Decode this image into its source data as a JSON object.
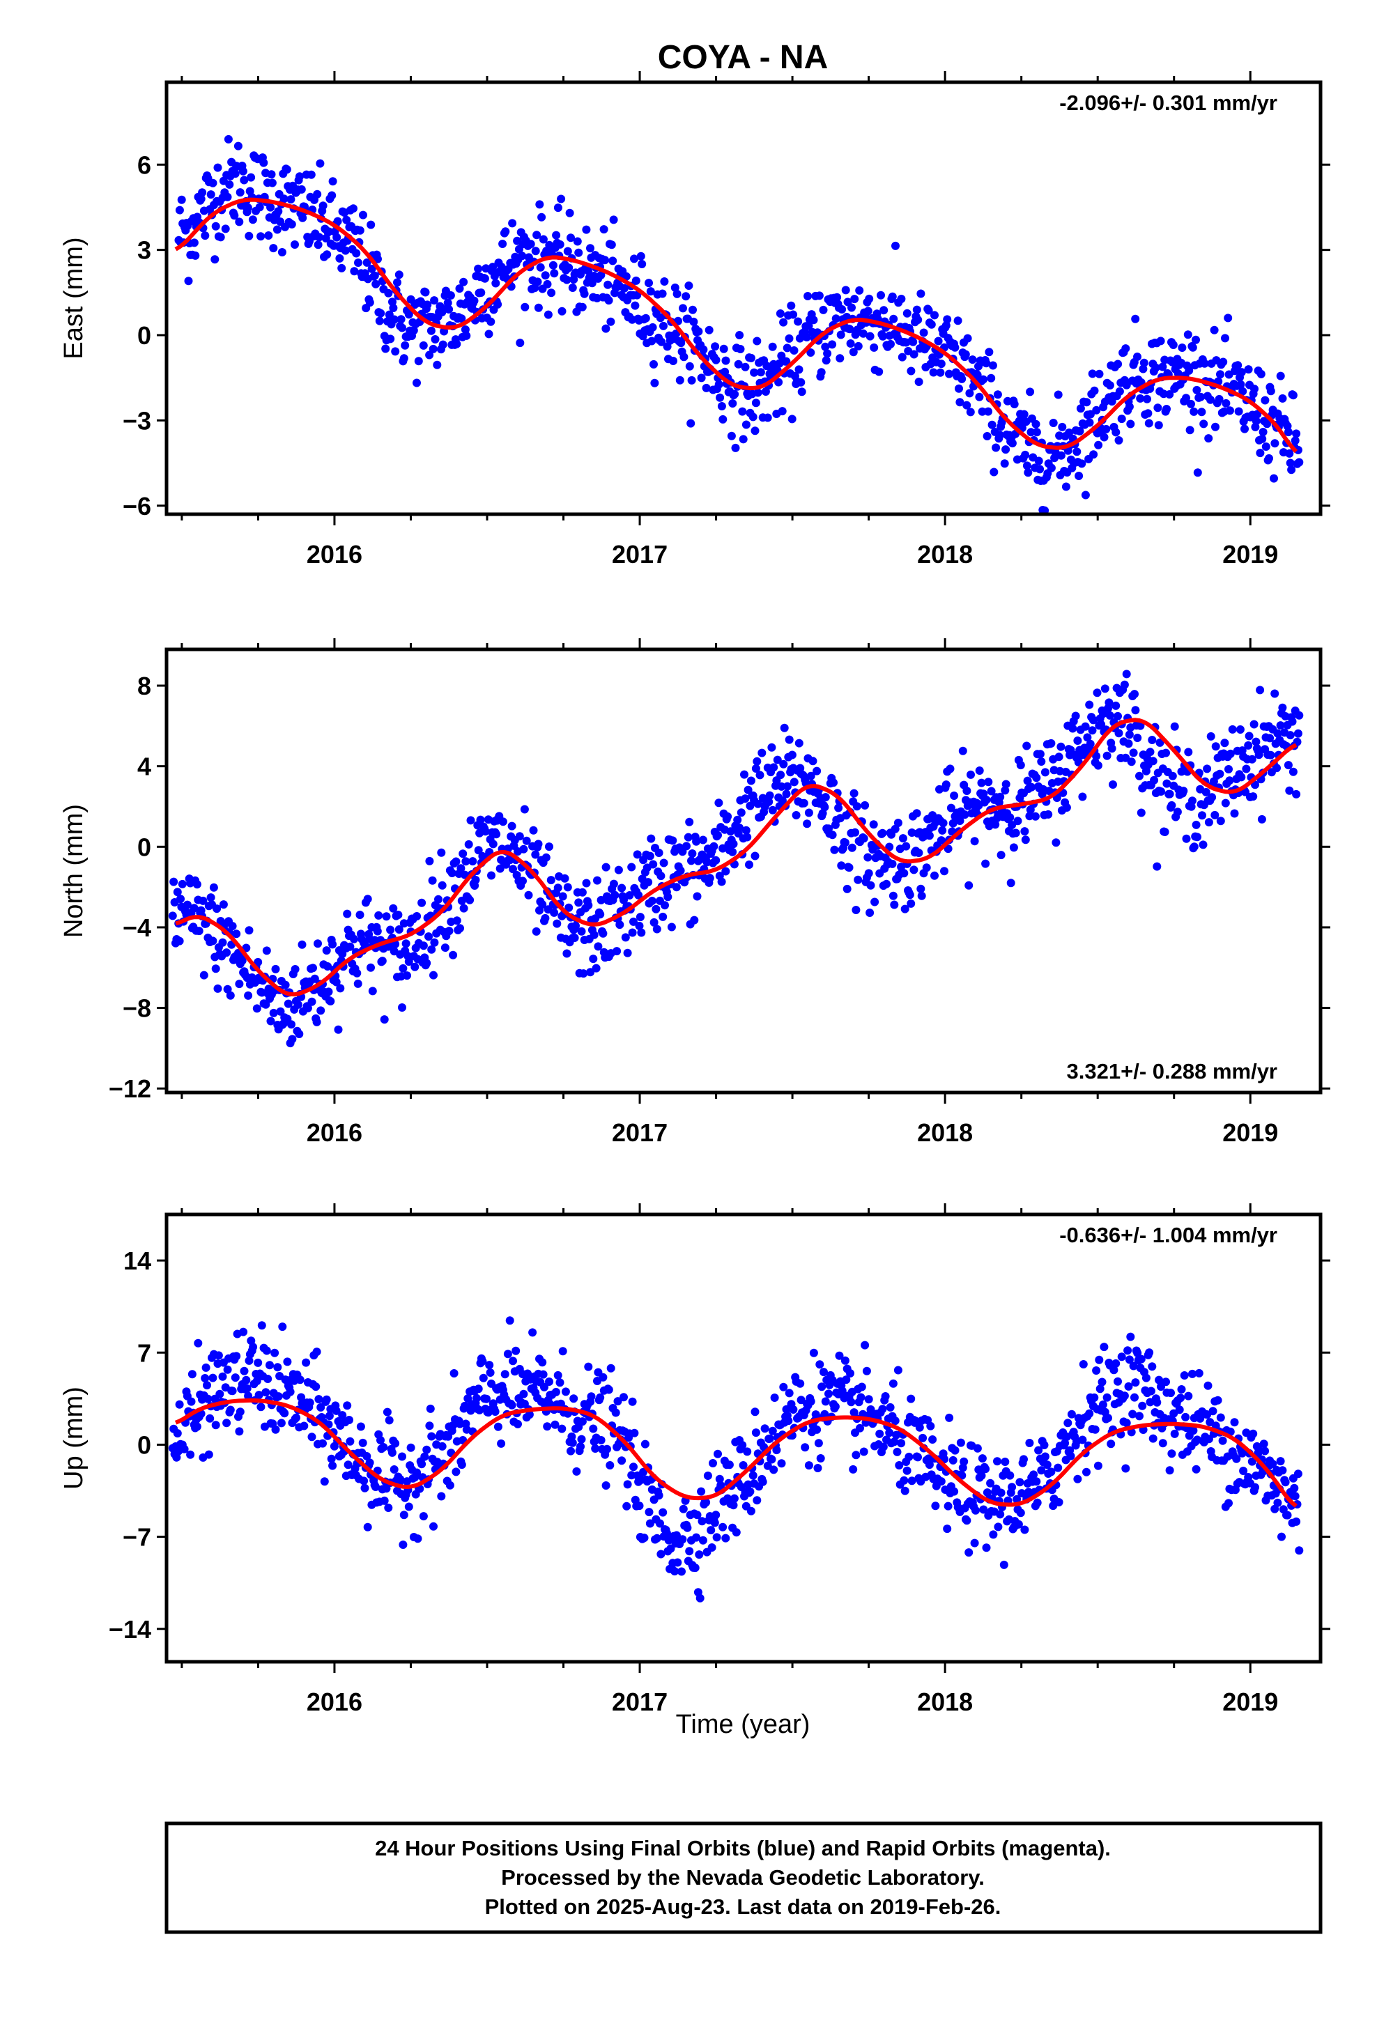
{
  "title": "COYA - NA",
  "xlabel": "Time (year)",
  "colors": {
    "points": "#0000ff",
    "fit": "#ff0000",
    "axes": "#000000"
  },
  "chart_data": [
    {
      "type": "scatter",
      "panel": "east",
      "ylabel": "East (mm)",
      "rate_label": "-2.096+/- 0.301 mm/yr",
      "rate_position": "top-right",
      "xlim": [
        2015.45,
        2019.23
      ],
      "ylim": [
        -6.3,
        8.9
      ],
      "yticks": [
        -6,
        -3,
        0,
        3,
        6
      ],
      "ytick_labels": [
        "−6",
        "−3",
        "0",
        "3",
        "6"
      ],
      "xticks": [
        2016,
        2017,
        2018,
        2019
      ],
      "xtick_labels": [
        "2016",
        "2017",
        "2018",
        "2019"
      ],
      "series": [
        {
          "name": "",
          "kind": "points",
          "x": [
            2015.52,
            2015.6,
            2015.68,
            2015.76,
            2015.84,
            2015.92,
            2016.0,
            2016.08,
            2016.16,
            2016.24,
            2016.32,
            2016.4,
            2016.48,
            2016.56,
            2016.64,
            2016.72,
            2016.8,
            2016.88,
            2016.96,
            2017.04,
            2017.12,
            2017.2,
            2017.28,
            2017.36,
            2017.44,
            2017.52,
            2017.6,
            2017.68,
            2017.76,
            2017.84,
            2017.92,
            2018.0,
            2018.08,
            2018.16,
            2018.24,
            2018.32,
            2018.4,
            2018.48,
            2018.56,
            2018.64,
            2018.72,
            2018.8,
            2018.88,
            2018.96,
            2019.04,
            2019.12,
            2019.15
          ],
          "y": [
            3.6,
            4.8,
            5.4,
            4.9,
            4.6,
            4.2,
            3.6,
            2.9,
            1.2,
            0.2,
            0.3,
            0.6,
            1.6,
            2.4,
            2.8,
            2.6,
            2.3,
            2.0,
            1.4,
            0.8,
            0.2,
            -0.6,
            -1.6,
            -2.0,
            -1.4,
            -0.6,
            0.3,
            0.6,
            0.5,
            0.4,
            -0.3,
            -0.7,
            -1.4,
            -2.6,
            -3.8,
            -4.3,
            -4.0,
            -3.0,
            -1.9,
            -1.3,
            -1.5,
            -1.3,
            -1.8,
            -2.2,
            -2.8,
            -3.6,
            -3.9
          ]
        },
        {
          "name": "",
          "kind": "fit",
          "x": [
            2015.48,
            2015.6,
            2015.7,
            2015.8,
            2015.9,
            2016.0,
            2016.1,
            2016.2,
            2016.3,
            2016.4,
            2016.5,
            2016.6,
            2016.7,
            2016.8,
            2016.9,
            2017.0,
            2017.1,
            2017.2,
            2017.3,
            2017.4,
            2017.5,
            2017.6,
            2017.7,
            2017.8,
            2017.9,
            2018.0,
            2018.1,
            2018.2,
            2018.3,
            2018.4,
            2018.5,
            2018.6,
            2018.7,
            2018.8,
            2018.9,
            2019.0,
            2019.1,
            2019.15
          ],
          "y": [
            2.9,
            4.3,
            4.8,
            4.7,
            4.4,
            3.9,
            3.0,
            1.5,
            0.4,
            0.2,
            1.0,
            2.2,
            2.8,
            2.6,
            2.2,
            1.6,
            0.6,
            -0.8,
            -1.8,
            -1.9,
            -1.0,
            0.1,
            0.6,
            0.4,
            0.0,
            -0.6,
            -1.6,
            -3.0,
            -3.9,
            -4.0,
            -3.2,
            -2.1,
            -1.5,
            -1.5,
            -1.8,
            -2.3,
            -3.3,
            -4.3
          ]
        }
      ]
    },
    {
      "type": "scatter",
      "panel": "north",
      "ylabel": "North (mm)",
      "rate_label": "3.321+/- 0.288 mm/yr",
      "rate_position": "bottom-right",
      "xlim": [
        2015.45,
        2019.23
      ],
      "ylim": [
        -12.2,
        9.8
      ],
      "yticks": [
        -12,
        -8,
        -4,
        0,
        4,
        8
      ],
      "ytick_labels": [
        "−12",
        "−8",
        "−4",
        "0",
        "4",
        "8"
      ],
      "xticks": [
        2016,
        2017,
        2018,
        2019
      ],
      "xtick_labels": [
        "2016",
        "2017",
        "2018",
        "2019"
      ],
      "series": [
        {
          "name": "",
          "kind": "points",
          "x": [
            2015.5,
            2015.58,
            2015.66,
            2015.74,
            2015.82,
            2015.9,
            2015.98,
            2016.06,
            2016.14,
            2016.22,
            2016.3,
            2016.38,
            2016.46,
            2016.54,
            2016.62,
            2016.7,
            2016.78,
            2016.86,
            2016.94,
            2017.02,
            2017.1,
            2017.18,
            2017.26,
            2017.34,
            2017.42,
            2017.5,
            2017.58,
            2017.66,
            2017.74,
            2017.82,
            2017.9,
            2017.98,
            2018.06,
            2018.14,
            2018.22,
            2018.3,
            2018.38,
            2018.46,
            2018.54,
            2018.62,
            2018.7,
            2018.78,
            2018.86,
            2018.94,
            2019.02,
            2019.1,
            2019.15
          ],
          "y": [
            -3.4,
            -3.9,
            -5.2,
            -6.6,
            -7.9,
            -7.4,
            -6.2,
            -4.8,
            -4.9,
            -5.4,
            -3.8,
            -2.4,
            -0.6,
            0.2,
            -0.9,
            -2.8,
            -4.1,
            -4.0,
            -3.2,
            -2.1,
            -1.3,
            -1.2,
            -0.4,
            1.6,
            2.6,
            3.4,
            2.9,
            1.0,
            -0.6,
            -0.6,
            -0.5,
            0.9,
            1.6,
            2.1,
            2.0,
            2.5,
            3.6,
            5.4,
            6.6,
            5.8,
            3.4,
            2.5,
            2.7,
            3.5,
            4.8,
            5.3,
            5.5
          ]
        },
        {
          "name": "",
          "kind": "fit",
          "x": [
            2015.48,
            2015.55,
            2015.65,
            2015.75,
            2015.85,
            2015.95,
            2016.05,
            2016.15,
            2016.25,
            2016.35,
            2016.45,
            2016.55,
            2016.65,
            2016.75,
            2016.85,
            2016.95,
            2017.05,
            2017.15,
            2017.25,
            2017.35,
            2017.45,
            2017.55,
            2017.65,
            2017.75,
            2017.85,
            2017.95,
            2018.05,
            2018.15,
            2018.25,
            2018.35,
            2018.45,
            2018.55,
            2018.65,
            2018.75,
            2018.85,
            2018.95,
            2019.05,
            2019.15
          ],
          "y": [
            -3.9,
            -3.3,
            -4.2,
            -6.2,
            -7.5,
            -6.9,
            -5.5,
            -4.8,
            -4.4,
            -3.3,
            -1.3,
            0.0,
            -1.2,
            -3.3,
            -4.0,
            -3.3,
            -2.1,
            -1.4,
            -1.2,
            -0.2,
            1.6,
            3.2,
            2.6,
            0.6,
            -0.8,
            -0.6,
            0.8,
            1.9,
            2.1,
            2.4,
            4.0,
            6.1,
            6.4,
            4.8,
            3.0,
            2.6,
            3.8,
            5.2
          ]
        }
      ]
    },
    {
      "type": "scatter",
      "panel": "up",
      "ylabel": "Up (mm)",
      "rate_label": "-0.636+/- 1.004 mm/yr",
      "rate_position": "top-right",
      "xlim": [
        2015.45,
        2019.23
      ],
      "ylim": [
        -16.5,
        17.5
      ],
      "yticks": [
        -14,
        -7,
        0,
        7,
        14
      ],
      "ytick_labels": [
        "−14",
        "−7",
        "0",
        "7",
        "14"
      ],
      "xticks": [
        2016,
        2017,
        2018,
        2019
      ],
      "xtick_labels": [
        "2016",
        "2017",
        "2018",
        "2019"
      ],
      "series": [
        {
          "name": "",
          "kind": "points",
          "x": [
            2015.5,
            2015.58,
            2015.66,
            2015.74,
            2015.82,
            2015.9,
            2015.98,
            2016.06,
            2016.14,
            2016.22,
            2016.3,
            2016.38,
            2016.46,
            2016.54,
            2016.62,
            2016.7,
            2016.78,
            2016.86,
            2016.94,
            2017.02,
            2017.1,
            2017.18,
            2017.26,
            2017.34,
            2017.42,
            2017.5,
            2017.58,
            2017.66,
            2017.74,
            2017.82,
            2017.9,
            2017.98,
            2018.06,
            2018.14,
            2018.22,
            2018.3,
            2018.38,
            2018.46,
            2018.54,
            2018.62,
            2018.7,
            2018.78,
            2018.86,
            2018.94,
            2019.02,
            2019.1,
            2019.15
          ],
          "y": [
            0.5,
            3.6,
            4.5,
            5.2,
            4.0,
            3.1,
            1.4,
            -0.6,
            -2.3,
            -3.0,
            -1.8,
            -0.5,
            2.8,
            4.1,
            3.6,
            3.9,
            2.2,
            2.0,
            0.5,
            -4.2,
            -7.2,
            -6.6,
            -4.1,
            -2.9,
            0.2,
            2.3,
            3.0,
            2.8,
            2.2,
            1.0,
            -0.7,
            -2.4,
            -3.5,
            -4.5,
            -4.2,
            -3.6,
            -0.6,
            2.4,
            3.5,
            4.9,
            3.0,
            2.0,
            1.2,
            -0.2,
            -1.8,
            -3.4,
            -4.8
          ]
        },
        {
          "name": "",
          "kind": "fit",
          "x": [
            2015.48,
            2015.55,
            2015.65,
            2015.75,
            2015.85,
            2015.95,
            2016.05,
            2016.15,
            2016.25,
            2016.35,
            2016.45,
            2016.55,
            2016.65,
            2016.75,
            2016.85,
            2016.95,
            2017.05,
            2017.15,
            2017.25,
            2017.35,
            2017.45,
            2017.55,
            2017.65,
            2017.75,
            2017.85,
            2017.95,
            2018.05,
            2018.15,
            2018.25,
            2018.35,
            2018.45,
            2018.55,
            2018.65,
            2018.75,
            2018.85,
            2018.95,
            2019.05,
            2019.15
          ],
          "y": [
            1.5,
            2.7,
            3.3,
            3.4,
            3.0,
            1.8,
            -0.6,
            -2.7,
            -3.4,
            -2.0,
            0.6,
            2.3,
            2.7,
            2.8,
            2.3,
            0.3,
            -2.6,
            -4.1,
            -4.0,
            -2.0,
            0.3,
            1.8,
            2.1,
            2.0,
            1.3,
            -0.5,
            -2.8,
            -4.5,
            -4.6,
            -3.1,
            -0.6,
            1.0,
            1.5,
            1.6,
            1.4,
            0.5,
            -1.7,
            -5.0
          ]
        }
      ]
    }
  ],
  "footer": {
    "lines": [
      "24 Hour Positions Using Final Orbits (blue) and Rapid Orbits (magenta).",
      "Processed by the Nevada Geodetic Laboratory.",
      "Plotted on 2025-Aug-23. Last data on 2019-Feb-26."
    ]
  }
}
